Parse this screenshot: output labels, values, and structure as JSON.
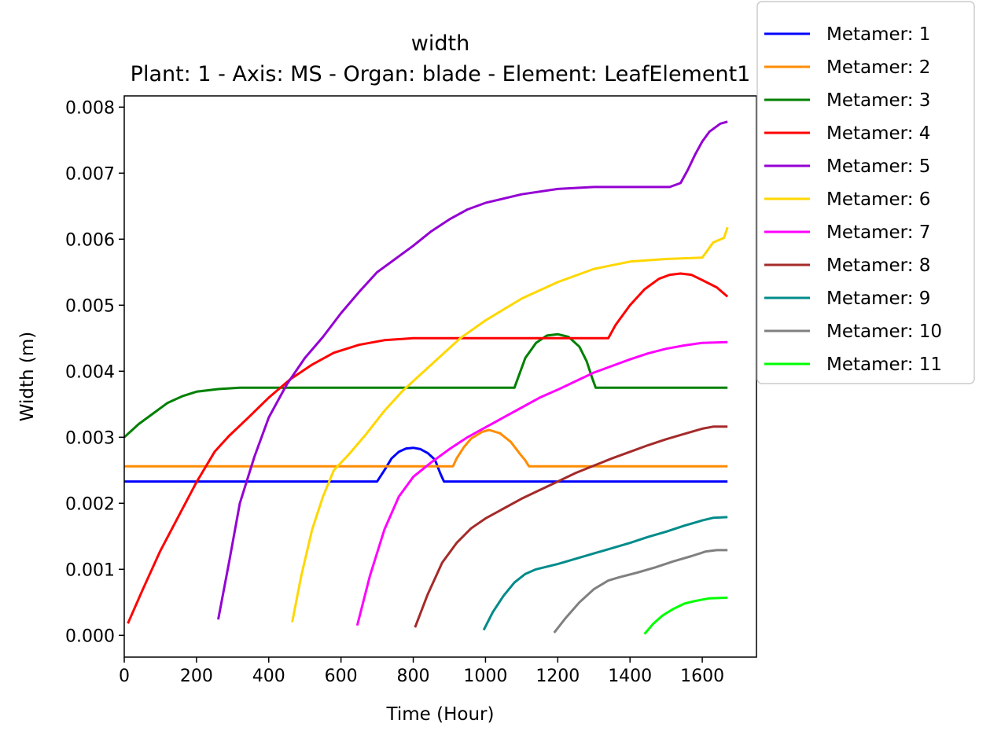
{
  "chart_data": {
    "type": "line",
    "title": "width",
    "subtitle": "Plant: 1 - Axis: MS - Organ: blade - Element: LeafElement1",
    "xlabel": "Time (Hour)",
    "ylabel": "Width (m)",
    "xlim": [
      0,
      1750
    ],
    "ylim": [
      -0.00033,
      0.00817
    ],
    "x_ticks": [
      0,
      200,
      400,
      600,
      800,
      1000,
      1200,
      1400,
      1600
    ],
    "x_tick_labels": [
      "0",
      "200",
      "400",
      "600",
      "800",
      "1000",
      "1200",
      "1400",
      "1600"
    ],
    "y_ticks": [
      0,
      0.001,
      0.002,
      0.003,
      0.004,
      0.005,
      0.006,
      0.007,
      0.008
    ],
    "y_tick_labels": [
      "0.000",
      "0.001",
      "0.002",
      "0.003",
      "0.004",
      "0.005",
      "0.006",
      "0.007",
      "0.008"
    ],
    "grid": false,
    "legend_position": "top-right, outside plot",
    "series": [
      {
        "name": "Metamer: 1",
        "color": "#0000ff",
        "points": [
          [
            0,
            0.00233
          ],
          [
            700,
            0.00233
          ],
          [
            720,
            0.0025
          ],
          [
            740,
            0.00268
          ],
          [
            760,
            0.00278
          ],
          [
            780,
            0.00283
          ],
          [
            800,
            0.00284
          ],
          [
            820,
            0.00282
          ],
          [
            840,
            0.00276
          ],
          [
            860,
            0.00266
          ],
          [
            875,
            0.00245
          ],
          [
            885,
            0.00233
          ],
          [
            1670,
            0.00233
          ]
        ]
      },
      {
        "name": "Metamer: 2",
        "color": "#ff8c00",
        "points": [
          [
            0,
            0.00256
          ],
          [
            910,
            0.00256
          ],
          [
            920,
            0.00268
          ],
          [
            940,
            0.00285
          ],
          [
            960,
            0.00298
          ],
          [
            990,
            0.00308
          ],
          [
            1010,
            0.00311
          ],
          [
            1040,
            0.00306
          ],
          [
            1070,
            0.00293
          ],
          [
            1095,
            0.00275
          ],
          [
            1110,
            0.00265
          ],
          [
            1120,
            0.00256
          ],
          [
            1670,
            0.00256
          ]
        ]
      },
      {
        "name": "Metamer: 3",
        "color": "#008000",
        "points": [
          [
            0,
            0.003
          ],
          [
            40,
            0.0032
          ],
          [
            80,
            0.00336
          ],
          [
            120,
            0.00352
          ],
          [
            160,
            0.00362
          ],
          [
            200,
            0.00369
          ],
          [
            260,
            0.00373
          ],
          [
            320,
            0.00375
          ],
          [
            1080,
            0.00375
          ],
          [
            1090,
            0.0039
          ],
          [
            1110,
            0.0042
          ],
          [
            1140,
            0.00443
          ],
          [
            1170,
            0.00454
          ],
          [
            1200,
            0.00456
          ],
          [
            1230,
            0.00452
          ],
          [
            1260,
            0.00437
          ],
          [
            1280,
            0.00415
          ],
          [
            1295,
            0.0039
          ],
          [
            1305,
            0.00375
          ],
          [
            1670,
            0.00375
          ]
        ]
      },
      {
        "name": "Metamer: 4",
        "color": "#ff0000",
        "points": [
          [
            10,
            0.00018
          ],
          [
            50,
            0.00068
          ],
          [
            100,
            0.00128
          ],
          [
            150,
            0.0018
          ],
          [
            200,
            0.00232
          ],
          [
            250,
            0.00278
          ],
          [
            290,
            0.00302
          ],
          [
            340,
            0.00328
          ],
          [
            400,
            0.0036
          ],
          [
            460,
            0.00388
          ],
          [
            520,
            0.0041
          ],
          [
            580,
            0.00428
          ],
          [
            650,
            0.0044
          ],
          [
            720,
            0.00447
          ],
          [
            800,
            0.0045
          ],
          [
            1340,
            0.0045
          ],
          [
            1360,
            0.0047
          ],
          [
            1400,
            0.005
          ],
          [
            1440,
            0.00524
          ],
          [
            1480,
            0.0054
          ],
          [
            1510,
            0.00546
          ],
          [
            1540,
            0.00548
          ],
          [
            1570,
            0.00546
          ],
          [
            1600,
            0.00538
          ],
          [
            1640,
            0.00527
          ],
          [
            1670,
            0.00513
          ]
        ]
      },
      {
        "name": "Metamer: 5",
        "color": "#9400d3",
        "points": [
          [
            260,
            0.00024
          ],
          [
            290,
            0.0011
          ],
          [
            320,
            0.002
          ],
          [
            360,
            0.0027
          ],
          [
            400,
            0.0033
          ],
          [
            450,
            0.0038
          ],
          [
            500,
            0.0042
          ],
          [
            550,
            0.00452
          ],
          [
            600,
            0.00488
          ],
          [
            650,
            0.0052
          ],
          [
            700,
            0.0055
          ],
          [
            750,
            0.0057
          ],
          [
            800,
            0.0059
          ],
          [
            850,
            0.00612
          ],
          [
            900,
            0.0063
          ],
          [
            950,
            0.00645
          ],
          [
            1000,
            0.00655
          ],
          [
            1100,
            0.00668
          ],
          [
            1200,
            0.00676
          ],
          [
            1300,
            0.00679
          ],
          [
            1400,
            0.00679
          ],
          [
            1510,
            0.00679
          ],
          [
            1540,
            0.00685
          ],
          [
            1560,
            0.00705
          ],
          [
            1580,
            0.00728
          ],
          [
            1600,
            0.00748
          ],
          [
            1620,
            0.00763
          ],
          [
            1650,
            0.00775
          ],
          [
            1670,
            0.00778
          ]
        ]
      },
      {
        "name": "Metamer: 6",
        "color": "#ffd700",
        "points": [
          [
            465,
            0.0002
          ],
          [
            490,
            0.0009
          ],
          [
            520,
            0.0016
          ],
          [
            550,
            0.0021
          ],
          [
            580,
            0.0025
          ],
          [
            620,
            0.00273
          ],
          [
            670,
            0.00305
          ],
          [
            720,
            0.0034
          ],
          [
            770,
            0.0037
          ],
          [
            820,
            0.00395
          ],
          [
            870,
            0.0042
          ],
          [
            930,
            0.0045
          ],
          [
            1000,
            0.00477
          ],
          [
            1100,
            0.0051
          ],
          [
            1200,
            0.00535
          ],
          [
            1300,
            0.00555
          ],
          [
            1400,
            0.00566
          ],
          [
            1500,
            0.0057
          ],
          [
            1600,
            0.00572
          ],
          [
            1630,
            0.00595
          ],
          [
            1660,
            0.00602
          ],
          [
            1670,
            0.00618
          ]
        ]
      },
      {
        "name": "Metamer: 7",
        "color": "#ff00ff",
        "points": [
          [
            645,
            0.00015
          ],
          [
            680,
            0.0009
          ],
          [
            720,
            0.0016
          ],
          [
            760,
            0.0021
          ],
          [
            800,
            0.0024
          ],
          [
            850,
            0.00262
          ],
          [
            900,
            0.00282
          ],
          [
            950,
            0.003
          ],
          [
            1000,
            0.00315
          ],
          [
            1050,
            0.0033
          ],
          [
            1100,
            0.00345
          ],
          [
            1150,
            0.0036
          ],
          [
            1200,
            0.00372
          ],
          [
            1250,
            0.00385
          ],
          [
            1300,
            0.00398
          ],
          [
            1350,
            0.00408
          ],
          [
            1400,
            0.00418
          ],
          [
            1450,
            0.00427
          ],
          [
            1500,
            0.00434
          ],
          [
            1550,
            0.00439
          ],
          [
            1600,
            0.00443
          ],
          [
            1670,
            0.00444
          ]
        ]
      },
      {
        "name": "Metamer: 8",
        "color": "#a52a2a",
        "points": [
          [
            805,
            0.00012
          ],
          [
            840,
            0.00062
          ],
          [
            880,
            0.0011
          ],
          [
            920,
            0.0014
          ],
          [
            960,
            0.00162
          ],
          [
            1000,
            0.00177
          ],
          [
            1050,
            0.00192
          ],
          [
            1100,
            0.00207
          ],
          [
            1150,
            0.0022
          ],
          [
            1200,
            0.00233
          ],
          [
            1250,
            0.00246
          ],
          [
            1300,
            0.00257
          ],
          [
            1350,
            0.00268
          ],
          [
            1400,
            0.00278
          ],
          [
            1450,
            0.00288
          ],
          [
            1500,
            0.00297
          ],
          [
            1550,
            0.00305
          ],
          [
            1600,
            0.00313
          ],
          [
            1630,
            0.00316
          ],
          [
            1670,
            0.00316
          ]
        ]
      },
      {
        "name": "Metamer: 9",
        "color": "#008b8b",
        "points": [
          [
            995,
            8e-05
          ],
          [
            1020,
            0.00035
          ],
          [
            1050,
            0.0006
          ],
          [
            1080,
            0.0008
          ],
          [
            1110,
            0.00093
          ],
          [
            1140,
            0.001
          ],
          [
            1200,
            0.00108
          ],
          [
            1250,
            0.00116
          ],
          [
            1300,
            0.00124
          ],
          [
            1350,
            0.00132
          ],
          [
            1400,
            0.0014
          ],
          [
            1450,
            0.00149
          ],
          [
            1500,
            0.00157
          ],
          [
            1550,
            0.00166
          ],
          [
            1600,
            0.00174
          ],
          [
            1630,
            0.00178
          ],
          [
            1670,
            0.00179
          ]
        ]
      },
      {
        "name": "Metamer: 10",
        "color": "#808080",
        "points": [
          [
            1190,
            4e-05
          ],
          [
            1220,
            0.00025
          ],
          [
            1260,
            0.0005
          ],
          [
            1300,
            0.0007
          ],
          [
            1340,
            0.00083
          ],
          [
            1370,
            0.00088
          ],
          [
            1420,
            0.00095
          ],
          [
            1470,
            0.00103
          ],
          [
            1520,
            0.00112
          ],
          [
            1570,
            0.0012
          ],
          [
            1610,
            0.00127
          ],
          [
            1640,
            0.00129
          ],
          [
            1670,
            0.00129
          ]
        ]
      },
      {
        "name": "Metamer: 11",
        "color": "#00ff00",
        "points": [
          [
            1440,
            2e-05
          ],
          [
            1465,
            0.00018
          ],
          [
            1490,
            0.0003
          ],
          [
            1520,
            0.0004
          ],
          [
            1550,
            0.00048
          ],
          [
            1580,
            0.00052
          ],
          [
            1620,
            0.00056
          ],
          [
            1670,
            0.00057
          ]
        ]
      }
    ]
  }
}
